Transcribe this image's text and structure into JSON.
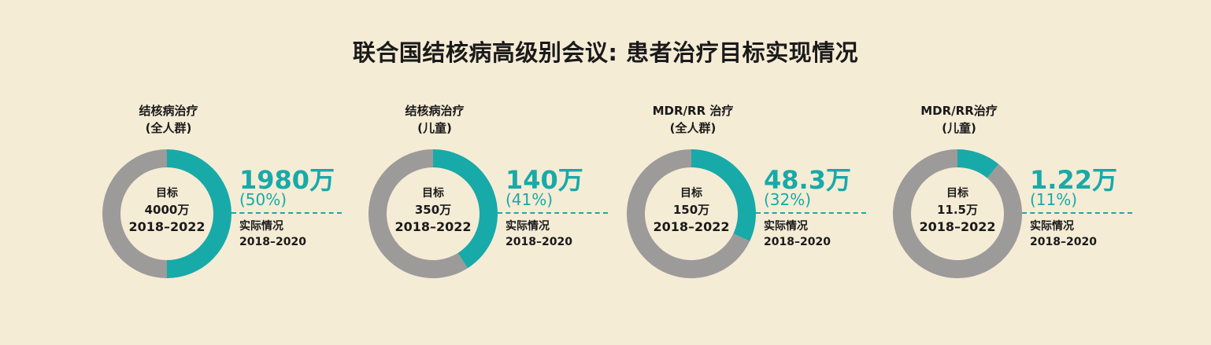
{
  "title": "联合国结核病高级别会议: 患者治疗目标实现情况",
  "colors": {
    "achieved": "#17aaa8",
    "remaining": "#9d9a9a",
    "background": "#f5ecd6"
  },
  "chart_data": [
    {
      "type": "pie",
      "label_line1": "结核病治疗",
      "label_line2": "(全人群)",
      "target_label": "目标",
      "target_value": "4000万",
      "target_period": "2018–2022",
      "actual_value": "1980万",
      "actual_percent_text": "(50%)",
      "actual_fraction": 0.5,
      "actual_label": "实际情况",
      "actual_period": "2018–2020"
    },
    {
      "type": "pie",
      "label_line1": "结核病治疗",
      "label_line2": "(儿童)",
      "target_label": "目标",
      "target_value": "350万",
      "target_period": "2018–2022",
      "actual_value": "140万",
      "actual_percent_text": "(41%)",
      "actual_fraction": 0.41,
      "actual_label": "实际情况",
      "actual_period": "2018–2020"
    },
    {
      "type": "pie",
      "label_line1": "MDR/RR 治疗",
      "label_line2": "(全人群)",
      "target_label": "目标",
      "target_value": "150万",
      "target_period": "2018–2022",
      "actual_value": "48.3万",
      "actual_percent_text": "(32%)",
      "actual_fraction": 0.32,
      "actual_label": "实际情况",
      "actual_period": "2018–2020"
    },
    {
      "type": "pie",
      "label_line1": "MDR/RR治疗",
      "label_line2": "(儿童)",
      "target_label": "目标",
      "target_value": "11.5万",
      "target_period": "2018–2022",
      "actual_value": "1.22万",
      "actual_percent_text": "(11%)",
      "actual_fraction": 0.11,
      "actual_label": "实际情况",
      "actual_period": "2018–2020"
    }
  ]
}
